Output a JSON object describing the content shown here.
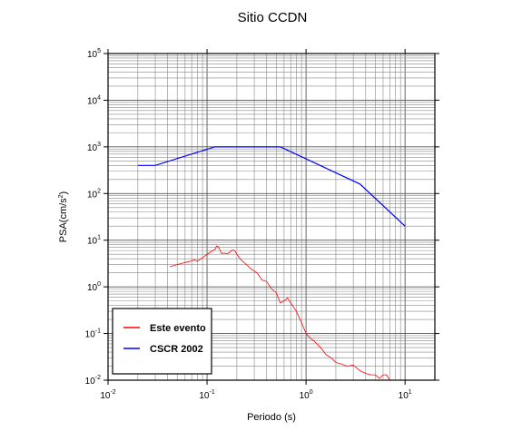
{
  "chart_data": {
    "type": "line",
    "title": "Sitio CCDN",
    "xlabel": "Periodo (s)",
    "ylabel_main": "PSA(cm/s",
    "ylabel_sup": "2",
    "ylabel_tail": ")",
    "x_scale": "log",
    "y_scale": "log",
    "xlim": [
      0.01,
      20
    ],
    "ylim": [
      0.01,
      100000
    ],
    "grid": true,
    "legend_position": "bottom-left",
    "x_ticks": [
      {
        "value": 0.01,
        "base": "10",
        "exp": "-2"
      },
      {
        "value": 0.1,
        "base": "10",
        "exp": "-1"
      },
      {
        "value": 1,
        "base": "10",
        "exp": "0"
      },
      {
        "value": 10,
        "base": "10",
        "exp": "1"
      }
    ],
    "y_ticks": [
      {
        "value": 0.01,
        "base": "10",
        "exp": "-2"
      },
      {
        "value": 0.1,
        "base": "10",
        "exp": "-1"
      },
      {
        "value": 1,
        "base": "10",
        "exp": "0"
      },
      {
        "value": 10,
        "base": "10",
        "exp": "1"
      },
      {
        "value": 100,
        "base": "10",
        "exp": "2"
      },
      {
        "value": 1000,
        "base": "10",
        "exp": "3"
      },
      {
        "value": 10000,
        "base": "10",
        "exp": "4"
      },
      {
        "value": 100000,
        "base": "10",
        "exp": "5"
      }
    ],
    "series": [
      {
        "name": "Este evento",
        "color": "#ff0000",
        "x": [
          0.042,
          0.05,
          0.056,
          0.063,
          0.07,
          0.075,
          0.08,
          0.085,
          0.09,
          0.1,
          0.105,
          0.11,
          0.115,
          0.12,
          0.125,
          0.13,
          0.14,
          0.15,
          0.16,
          0.17,
          0.18,
          0.19,
          0.2,
          0.22,
          0.25,
          0.28,
          0.32,
          0.36,
          0.4,
          0.45,
          0.5,
          0.55,
          0.6,
          0.65,
          0.7,
          0.8,
          0.9,
          1.0,
          1.1,
          1.2,
          1.4,
          1.6,
          1.8,
          2.0,
          2.3,
          2.6,
          3.0,
          3.5,
          4.0,
          4.5,
          5.0,
          5.5,
          6.0,
          6.5,
          7.0
        ],
        "y": [
          2.7,
          3.0,
          3.2,
          3.4,
          3.6,
          3.8,
          3.5,
          3.9,
          4.2,
          5.0,
          5.3,
          5.8,
          6.0,
          6.3,
          7.5,
          7.3,
          5.2,
          5.3,
          5.1,
          5.6,
          6.2,
          6.0,
          5.0,
          3.8,
          3.0,
          2.4,
          2.0,
          1.4,
          1.3,
          0.9,
          0.75,
          0.45,
          0.5,
          0.58,
          0.45,
          0.3,
          0.17,
          0.1,
          0.08,
          0.07,
          0.05,
          0.035,
          0.03,
          0.024,
          0.022,
          0.02,
          0.021,
          0.016,
          0.014,
          0.013,
          0.013,
          0.011,
          0.013,
          0.013,
          0.01
        ]
      },
      {
        "name": "CSCR 2002",
        "color": "#0000ff",
        "x": [
          0.02,
          0.03,
          0.12,
          0.55,
          3.5,
          10
        ],
        "y": [
          400,
          400,
          1000,
          1000,
          160,
          20
        ]
      }
    ]
  }
}
